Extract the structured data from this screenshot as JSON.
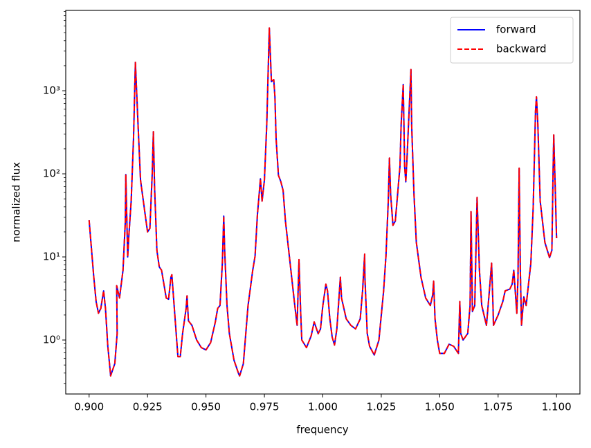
{
  "chart_data": {
    "type": "line",
    "xlabel": "frequency",
    "ylabel": "normalized flux",
    "log_y": true,
    "legend": "upper right",
    "x": [
      0.9,
      0.902,
      0.903,
      0.904,
      0.905,
      0.9062,
      0.907,
      0.908,
      0.909,
      0.9092,
      0.911,
      0.912,
      0.9118,
      0.913,
      0.9145,
      0.9155,
      0.9157,
      0.9165,
      0.917,
      0.918,
      0.919,
      0.9198,
      0.921,
      0.922,
      0.924,
      0.925,
      0.926,
      0.927,
      0.9275,
      0.928,
      0.929,
      0.93,
      0.931,
      0.933,
      0.934,
      0.935,
      0.9354,
      0.937,
      0.938,
      0.939,
      0.94,
      0.9415,
      0.9419,
      0.9425,
      0.944,
      0.946,
      0.948,
      0.95,
      0.952,
      0.954,
      0.955,
      0.956,
      0.957,
      0.9576,
      0.958,
      0.959,
      0.96,
      0.962,
      0.964,
      0.9644,
      0.966,
      0.968,
      0.97,
      0.971,
      0.972,
      0.9733,
      0.974,
      0.975,
      0.976,
      0.9771,
      0.978,
      0.979,
      0.9795,
      0.98,
      0.981,
      0.982,
      0.983,
      0.984,
      0.986,
      0.988,
      0.989,
      0.9898,
      0.9905,
      0.991,
      0.993,
      0.995,
      0.9963,
      0.998,
      0.999,
      1.0,
      1.0013,
      1.002,
      1.003,
      1.004,
      1.005,
      1.006,
      1.0075,
      1.008,
      1.009,
      1.01,
      1.012,
      1.014,
      1.016,
      1.017,
      1.0179,
      1.018,
      1.019,
      1.02,
      1.022,
      1.024,
      1.026,
      1.027,
      1.028,
      1.0285,
      1.029,
      1.03,
      1.031,
      1.032,
      1.033,
      1.0335,
      1.0344,
      1.035,
      1.0355,
      1.036,
      1.0377,
      1.038,
      1.039,
      1.04,
      1.042,
      1.044,
      1.046,
      1.047,
      1.0474,
      1.048,
      1.049,
      1.05,
      1.052,
      1.054,
      1.056,
      1.057,
      1.058,
      1.0586,
      1.059,
      1.06,
      1.062,
      1.063,
      1.0634,
      1.064,
      1.065,
      1.066,
      1.067,
      1.068,
      1.07,
      1.071,
      1.0722,
      1.0728,
      1.073,
      1.075,
      1.077,
      1.078,
      1.08,
      1.081,
      1.0817,
      1.083,
      1.0835,
      1.084,
      1.0845,
      1.085,
      1.086,
      1.087,
      1.088,
      1.089,
      1.09,
      1.091,
      1.0914,
      1.092,
      1.093,
      1.095,
      1.097,
      1.098,
      1.0985,
      1.0988,
      1.0995,
      1.1
    ],
    "series": [
      {
        "name": "forward",
        "color": "#0000ff",
        "linestyle": "solid",
        "values": [
          27.6,
          5.7,
          2.9,
          2.1,
          2.4,
          3.9,
          2.4,
          0.84,
          0.43,
          0.37,
          0.52,
          1.2,
          4.5,
          3.2,
          6.9,
          27,
          98,
          10,
          18,
          47,
          266,
          2200,
          355,
          84,
          32,
          20,
          22,
          100,
          322,
          70,
          12,
          7.6,
          6.9,
          3.2,
          3.1,
          5.7,
          6.1,
          1.5,
          0.63,
          0.63,
          1.2,
          2.4,
          3.4,
          1.7,
          1.5,
          1.0,
          0.81,
          0.76,
          0.93,
          1.65,
          2.4,
          2.6,
          8.4,
          31,
          12,
          2.6,
          1.2,
          0.57,
          0.39,
          0.37,
          0.52,
          2.6,
          6.9,
          10.2,
          32,
          87,
          47,
          84,
          390,
          5700,
          1290,
          1360,
          845,
          266,
          96,
          81,
          63,
          27,
          8.4,
          2.6,
          1.5,
          9.3,
          2.2,
          1.0,
          0.81,
          1.12,
          1.65,
          1.19,
          1.36,
          2.6,
          4.7,
          3.9,
          1.8,
          1.08,
          0.87,
          1.36,
          5.7,
          3.2,
          2.4,
          1.8,
          1.5,
          1.36,
          1.8,
          3.9,
          10.8,
          5.7,
          1.2,
          0.84,
          0.66,
          1.0,
          3.9,
          10.2,
          47,
          155,
          57,
          24,
          27,
          57,
          123,
          390,
          1190,
          123,
          80,
          150,
          1800,
          390,
          57,
          15,
          5.7,
          3.2,
          2.6,
          3.5,
          5.1,
          1.8,
          1.0,
          0.69,
          0.69,
          0.89,
          0.84,
          0.76,
          0.69,
          2.9,
          1.2,
          1.0,
          1.2,
          2.6,
          35,
          2.2,
          2.6,
          52,
          6.9,
          2.6,
          1.5,
          3.2,
          8.4,
          2.6,
          1.5,
          2.0,
          2.9,
          3.9,
          4.1,
          4.7,
          6.9,
          2.1,
          5.7,
          117,
          6.9,
          1.5,
          3.3,
          2.6,
          4.7,
          8.4,
          39,
          570,
          845,
          390,
          47,
          15,
          9.8,
          12,
          100,
          294,
          57,
          16.8
        ]
      },
      {
        "name": "backward",
        "color": "#ff0000",
        "linestyle": "dashed",
        "values": [
          27.6,
          5.7,
          2.9,
          2.1,
          2.4,
          3.9,
          2.4,
          0.84,
          0.43,
          0.37,
          0.52,
          1.2,
          4.5,
          3.2,
          6.9,
          27,
          98,
          10,
          18,
          47,
          266,
          2200,
          355,
          84,
          32,
          20,
          22,
          100,
          322,
          70,
          12,
          7.6,
          6.9,
          3.2,
          3.1,
          5.7,
          6.1,
          1.5,
          0.63,
          0.63,
          1.2,
          2.4,
          3.4,
          1.7,
          1.5,
          1.0,
          0.81,
          0.76,
          0.93,
          1.65,
          2.4,
          2.6,
          8.4,
          31,
          12,
          2.6,
          1.2,
          0.57,
          0.39,
          0.37,
          0.52,
          2.6,
          6.9,
          10.2,
          32,
          87,
          47,
          84,
          390,
          5700,
          1290,
          1360,
          845,
          266,
          96,
          81,
          63,
          27,
          8.4,
          2.6,
          1.5,
          9.3,
          2.2,
          1.0,
          0.81,
          1.12,
          1.65,
          1.19,
          1.36,
          2.6,
          4.7,
          3.9,
          1.8,
          1.08,
          0.87,
          1.36,
          5.7,
          3.2,
          2.4,
          1.8,
          1.5,
          1.36,
          1.8,
          3.9,
          10.8,
          5.7,
          1.2,
          0.84,
          0.66,
          1.0,
          3.9,
          10.2,
          47,
          155,
          57,
          24,
          27,
          57,
          123,
          390,
          1190,
          123,
          80,
          150,
          1800,
          390,
          57,
          15,
          5.7,
          3.2,
          2.6,
          3.5,
          5.1,
          1.8,
          1.0,
          0.69,
          0.69,
          0.89,
          0.84,
          0.76,
          0.69,
          2.9,
          1.2,
          1.0,
          1.2,
          2.6,
          35,
          2.2,
          2.6,
          52,
          6.9,
          2.6,
          1.5,
          3.2,
          8.4,
          2.6,
          1.5,
          2.0,
          2.9,
          3.9,
          4.1,
          4.7,
          6.9,
          2.1,
          5.7,
          117,
          6.9,
          1.5,
          3.3,
          2.6,
          4.7,
          8.4,
          39,
          570,
          845,
          390,
          47,
          15,
          9.8,
          12,
          100,
          294,
          57,
          16.8
        ]
      }
    ],
    "xlim": [
      0.89,
      1.11
    ],
    "xticks": [
      {
        "value": 0.9,
        "label": "0.900"
      },
      0.925,
      {
        "value": 0.95,
        "label": "0.950"
      },
      0.975,
      {
        "value": 1.0,
        "label": "1.000"
      },
      1.025,
      {
        "value": 1.05,
        "label": "1.050"
      },
      1.075,
      {
        "value": 1.1,
        "label": "1.100"
      }
    ],
    "ylim": [
      0.224,
      9270
    ],
    "yticks": [
      {
        "value": 1,
        "label": "10⁰"
      },
      {
        "value": 10,
        "label": "10¹"
      },
      {
        "value": 100,
        "label": "10²"
      },
      {
        "value": 1000,
        "label": "10³"
      }
    ],
    "yminorticks": [
      0.3,
      0.4,
      0.5,
      0.6,
      0.7,
      0.8,
      0.9,
      2,
      3,
      4,
      5,
      6,
      7,
      8,
      9,
      20,
      30,
      40,
      50,
      60,
      70,
      80,
      90,
      200,
      300,
      400,
      500,
      600,
      700,
      800,
      900,
      2000,
      3000,
      4000,
      5000,
      6000,
      7000,
      8000,
      9000
    ]
  }
}
